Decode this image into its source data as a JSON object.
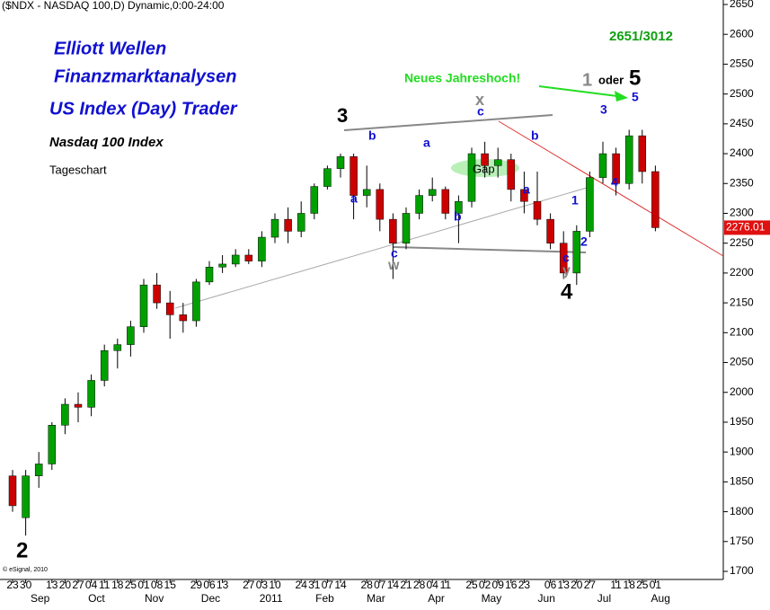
{
  "header": "($NDX - NASDAQ 100,D) Dynamic,0:00-24:00",
  "chart_data": {
    "type": "candlestick",
    "categories": [
      "23",
      "30",
      null,
      "13",
      "20",
      "27",
      "04",
      "11",
      "18",
      "25",
      "01",
      "08",
      "15",
      null,
      "29",
      "06",
      "13",
      null,
      "27",
      "03",
      "10",
      null,
      "24",
      "31",
      "07",
      "14",
      null,
      "28",
      "07",
      "14",
      "21",
      "28",
      "04",
      "11",
      null,
      "25",
      "02",
      "09",
      "16",
      "23",
      null,
      "06",
      "13",
      "20",
      "27",
      null,
      "11",
      "18",
      "25",
      "01"
    ],
    "open": [
      1860,
      1790,
      1860,
      1880,
      1945,
      1980,
      1975,
      2020,
      2070,
      2080,
      2110,
      2180,
      2150,
      2130,
      2120,
      2185,
      2210,
      2215,
      2230,
      2220,
      2260,
      2290,
      2270,
      2300,
      2345,
      2375,
      2395,
      2330,
      2340,
      2290,
      2250,
      2300,
      2330,
      2340,
      2300,
      2320,
      2400,
      2380,
      2390,
      2340,
      2320,
      2290,
      2250,
      2200,
      2270,
      2360,
      2400,
      2350,
      2430,
      2370
    ],
    "high": [
      1870,
      1870,
      1900,
      1950,
      1990,
      2000,
      2030,
      2080,
      2090,
      2120,
      2190,
      2200,
      2170,
      2150,
      2190,
      2220,
      2230,
      2240,
      2240,
      2270,
      2300,
      2310,
      2320,
      2350,
      2380,
      2400,
      2400,
      2380,
      2350,
      2300,
      2310,
      2340,
      2360,
      2345,
      2330,
      2410,
      2420,
      2410,
      2400,
      2370,
      2370,
      2300,
      2270,
      2280,
      2370,
      2420,
      2410,
      2440,
      2440,
      2380
    ],
    "low": [
      1800,
      1760,
      1840,
      1870,
      1930,
      1950,
      1960,
      2010,
      2040,
      2060,
      2100,
      2140,
      2090,
      2100,
      2110,
      2180,
      2200,
      2210,
      2215,
      2210,
      2250,
      2250,
      2260,
      2290,
      2340,
      2360,
      2290,
      2310,
      2270,
      2190,
      2240,
      2290,
      2320,
      2290,
      2250,
      2310,
      2360,
      2360,
      2320,
      2300,
      2280,
      2240,
      2190,
      2180,
      2260,
      2350,
      2330,
      2340,
      2350,
      2270
    ],
    "close": [
      1810,
      1860,
      1880,
      1945,
      1980,
      1975,
      2020,
      2070,
      2080,
      2110,
      2180,
      2150,
      2130,
      2120,
      2185,
      2210,
      2215,
      2230,
      2220,
      2260,
      2290,
      2270,
      2300,
      2345,
      2375,
      2395,
      2330,
      2340,
      2290,
      2250,
      2300,
      2330,
      2340,
      2300,
      2320,
      2400,
      2380,
      2390,
      2340,
      2320,
      2290,
      2250,
      2200,
      2270,
      2360,
      2400,
      2350,
      2430,
      2370,
      2276.01
    ],
    "up_color": "#00a000",
    "down_color": "#cc0000",
    "months": [
      {
        "value": 2.1,
        "label": "Sep"
      },
      {
        "value": 6.4,
        "label": "Oct"
      },
      {
        "value": 10.8,
        "label": "Nov"
      },
      {
        "value": 15.1,
        "label": "Dec"
      },
      {
        "value": 19.7,
        "label": "2011"
      },
      {
        "value": 23.8,
        "label": "Feb"
      },
      {
        "value": 27.7,
        "label": "Mar"
      },
      {
        "value": 32.3,
        "label": "Apr"
      },
      {
        "value": 36.5,
        "label": "May"
      },
      {
        "value": 40.7,
        "label": "Jun"
      },
      {
        "value": 45.1,
        "label": "Jul"
      },
      {
        "value": 49.4,
        "label": "Aug"
      }
    ],
    "ylim": [
      1700,
      2650
    ],
    "yticks": [
      1700,
      1750,
      1800,
      1850,
      1900,
      1950,
      2000,
      2050,
      2100,
      2150,
      2200,
      2250,
      2300,
      2350,
      2400,
      2450,
      2500,
      2550,
      2600,
      2650
    ],
    "last_price": 2276.01,
    "annotations": [
      "Elliott Wellen",
      "Finanzmarktanalysen",
      "US Index (Day) Trader",
      "Nasdaq 100 Index",
      "Tageschart",
      "2651/3012",
      "Neues Jahreshoch!",
      "1",
      "oder",
      "5",
      "2",
      "3",
      "4",
      "x",
      "c",
      "a",
      "b",
      "a",
      "c",
      "w",
      "b",
      "Gap",
      "b",
      "a",
      "1",
      "c",
      "y",
      "2",
      "3",
      "4",
      "5",
      "© eSignal, 2010"
    ]
  }
}
